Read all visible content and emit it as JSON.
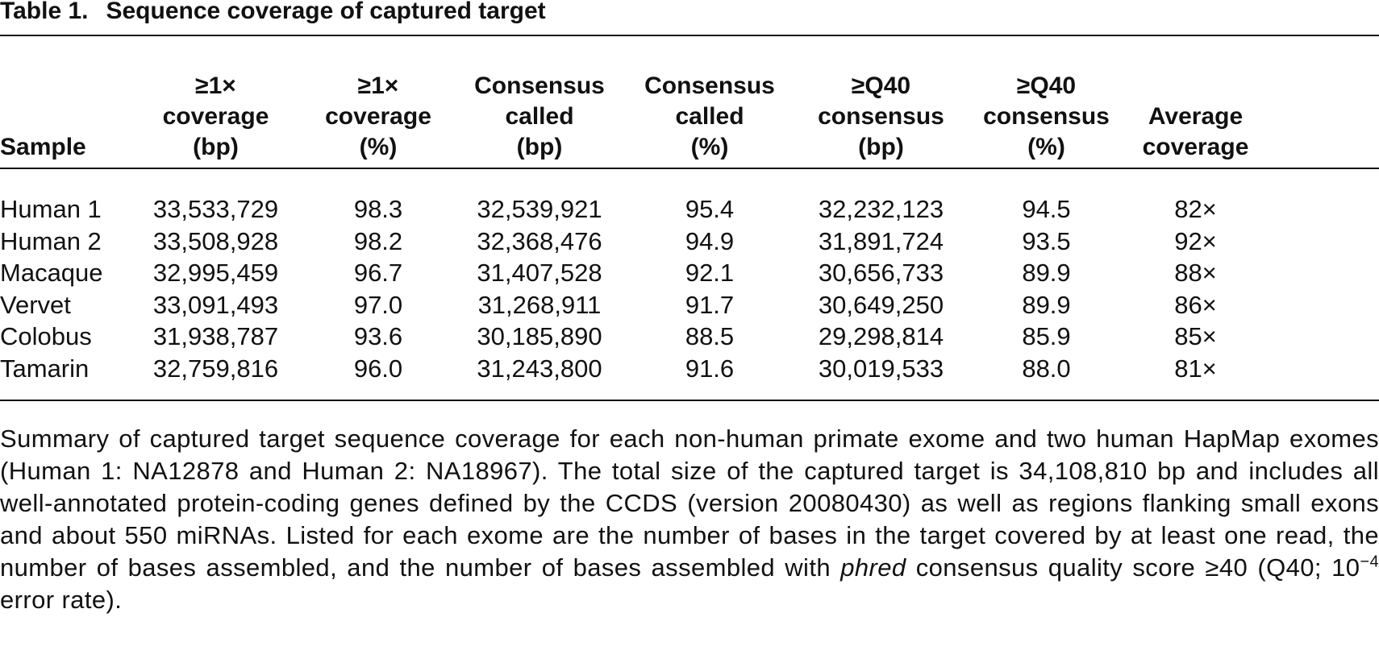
{
  "title": {
    "label": "Table 1.",
    "text": "Sequence coverage of captured target"
  },
  "table": {
    "header": [
      [
        "Sample"
      ],
      [
        "≥1×",
        "coverage",
        "(bp)"
      ],
      [
        "≥1×",
        "coverage",
        "(%)"
      ],
      [
        "Consensus",
        "called",
        "(bp)"
      ],
      [
        "Consensus",
        "called",
        "(%)"
      ],
      [
        "≥Q40",
        "consensus",
        "(bp)"
      ],
      [
        "≥Q40",
        "consensus",
        "(%)"
      ],
      [
        "Average",
        "coverage"
      ]
    ],
    "rows": [
      [
        "Human 1",
        "33,533,729",
        "98.3",
        "32,539,921",
        "95.4",
        "32,232,123",
        "94.5",
        "82×"
      ],
      [
        "Human 2",
        "33,508,928",
        "98.2",
        "32,368,476",
        "94.9",
        "31,891,724",
        "93.5",
        "92×"
      ],
      [
        "Macaque",
        "32,995,459",
        "96.7",
        "31,407,528",
        "92.1",
        "30,656,733",
        "89.9",
        "88×"
      ],
      [
        "Vervet",
        "33,091,493",
        "97.0",
        "31,268,911",
        "91.7",
        "30,649,250",
        "89.9",
        "86×"
      ],
      [
        "Colobus",
        "31,938,787",
        "93.6",
        "30,185,890",
        "88.5",
        "29,298,814",
        "85.9",
        "85×"
      ],
      [
        "Tamarin",
        "32,759,816",
        "96.0",
        "31,243,800",
        "91.6",
        "30,019,533",
        "88.0",
        "81×"
      ]
    ]
  },
  "caption": [
    "Summary of captured target sequence coverage for each non-human primate exome and two human HapMap exomes (Human 1: NA12878 and Human 2: NA18967). The total size of the captured target is 34,108,810 bp and includes all well-annotated protein-coding genes defined by the CCDS (version 20080430) as well as regions flanking small exons and about 550 miRNAs. Listed for each exome are the number of bases in the target covered by at least one read, the number of bases assembled, and the number of bases assembled with ",
    "phred",
    " consensus quality score ≥40 (Q40; 10",
    "−4",
    " error rate)."
  ]
}
